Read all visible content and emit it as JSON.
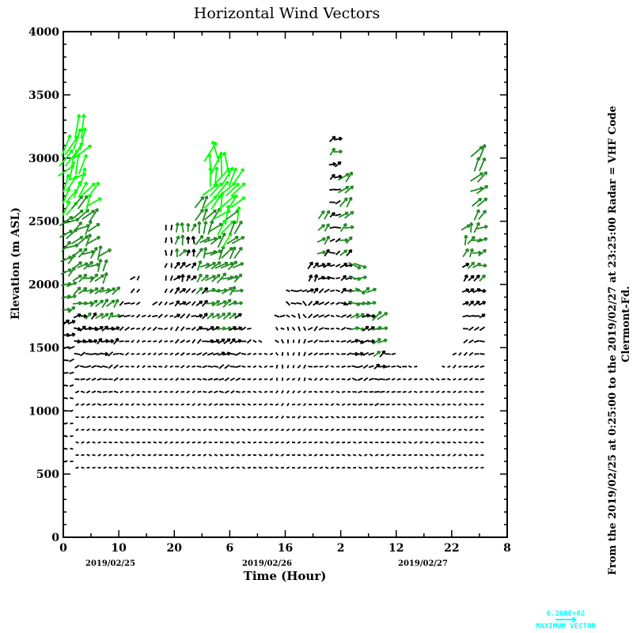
{
  "chart_data": {
    "type": "vector-field",
    "title": "Horizontal Wind Vectors",
    "xlabel": "Time (Hour)",
    "ylabel": "Elevation (m ASL)",
    "xlim": [
      0,
      80
    ],
    "ylim": [
      0,
      4000
    ],
    "x_tick_labels": [
      "0",
      "10",
      "20",
      "6",
      "16",
      "2",
      "12",
      "22",
      "8"
    ],
    "y_ticks": [
      0,
      500,
      1000,
      1500,
      2000,
      2500,
      3000,
      3500,
      4000
    ],
    "y_tick_labels": [
      "0",
      "500",
      "1000",
      "1500",
      "2000",
      "2500",
      "3000",
      "3500",
      "4000"
    ],
    "dates": [
      "2019/02/25",
      "2019/02/26",
      "2019/02/27"
    ],
    "side_text_1": "From the 2019/02/25 at  0:25:00 to the 2019/02/27 at 23:25:00 Radar = VHF Code",
    "side_text_2": "Clermont-Fd.",
    "legend_value": "0.200E+02",
    "legend_label": "MAXIMUM VECTOR",
    "reference_speed": 20,
    "speed_colors": {
      "low": "#000000",
      "mid": "#228b22",
      "high": "#00ff00",
      "legend": "#00ffff"
    },
    "surface_wind": {
      "speed": 2,
      "dir_deg": 0
    },
    "profile_fields": [
      "hour",
      "bottom_m",
      "top_m",
      "upper_speed_ms",
      "upper_dir_deg"
    ],
    "profiles": [
      [
        0,
        600,
        3100,
        22,
        70
      ],
      [
        2,
        550,
        3300,
        24,
        65
      ],
      [
        4,
        550,
        2800,
        18,
        65
      ],
      [
        6,
        550,
        2300,
        14,
        55
      ],
      [
        8,
        550,
        1950,
        10,
        40
      ],
      [
        10,
        550,
        1900,
        6,
        30
      ],
      [
        12,
        550,
        2100,
        5,
        50
      ],
      [
        14,
        550,
        1800,
        4,
        20
      ],
      [
        16,
        550,
        1850,
        5,
        30
      ],
      [
        18,
        550,
        2500,
        6,
        90
      ],
      [
        20,
        550,
        2450,
        10,
        80
      ],
      [
        22,
        550,
        2500,
        8,
        80
      ],
      [
        24,
        550,
        2700,
        14,
        75
      ],
      [
        26,
        550,
        3100,
        22,
        80
      ],
      [
        28,
        550,
        2950,
        24,
        75
      ],
      [
        30,
        550,
        2900,
        20,
        70
      ],
      [
        32,
        550,
        1700,
        5,
        20
      ],
      [
        34,
        550,
        1550,
        3,
        0
      ],
      [
        36,
        550,
        1500,
        3,
        0
      ],
      [
        38,
        550,
        1800,
        5,
        180
      ],
      [
        40,
        550,
        2000,
        5,
        180
      ],
      [
        42,
        550,
        1950,
        6,
        170
      ],
      [
        44,
        550,
        2200,
        8,
        60
      ],
      [
        46,
        550,
        2600,
        10,
        50
      ],
      [
        48,
        550,
        3150,
        8,
        30
      ],
      [
        50,
        550,
        2850,
        12,
        40
      ],
      [
        52,
        550,
        2200,
        14,
        0
      ],
      [
        54,
        550,
        2000,
        10,
        30
      ],
      [
        56,
        550,
        1800,
        12,
        40
      ],
      [
        58,
        550,
        1500,
        5,
        20
      ],
      [
        60,
        550,
        1350,
        4,
        0
      ],
      [
        62,
        550,
        1350,
        3,
        0
      ],
      [
        64,
        550,
        1300,
        3,
        0
      ],
      [
        66,
        550,
        1300,
        3,
        0
      ],
      [
        68,
        550,
        1350,
        3,
        0
      ],
      [
        70,
        550,
        1450,
        4,
        30
      ],
      [
        72,
        550,
        2450,
        10,
        60
      ],
      [
        74,
        550,
        3100,
        16,
        55
      ]
    ]
  }
}
